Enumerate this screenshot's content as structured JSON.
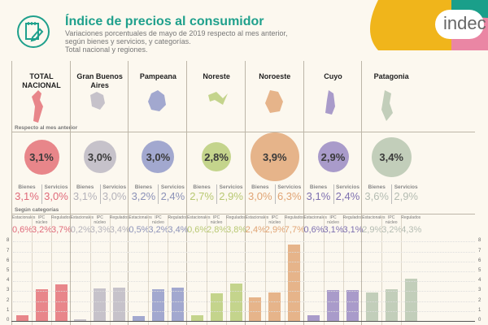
{
  "header": {
    "title": "Índice de precios al consumidor",
    "subtitle_lines": [
      "Variaciones porcentuales de mayo de 2019 respecto al mes anterior,",
      "según bienes y servicios, y categorías.",
      "Total nacional y regiones."
    ],
    "icon": "notepad-pencil-icon",
    "logo_text": "indec",
    "accent": "#1fa08c"
  },
  "sections": {
    "previous_month": "Respecto al mes anterior",
    "by_category": "Según categorías"
  },
  "labels": {
    "bienes": "Bienes",
    "servicios": "Servicios",
    "estacionales": "Estacionales",
    "nucleo": "IPC núcleo",
    "regulados": "Regulados"
  },
  "regions": [
    {
      "name": "TOTAL NACIONAL",
      "general": "3,1%",
      "bienes": "3,1%",
      "servicios": "3,0%",
      "estacionales": "0,6%",
      "nucleo": "3,2%",
      "regulados": "3,7%",
      "color": "#e8868a",
      "text_color": "#e06a7a"
    },
    {
      "name": "Gran Buenos Aires",
      "general": "3,0%",
      "bienes": "3,1%",
      "servicios": "3,0%",
      "estacionales": "0,2%",
      "nucleo": "3,3%",
      "regulados": "3,4%",
      "color": "#c6c2ca",
      "text_color": "#b4b2ba"
    },
    {
      "name": "Pampeana",
      "general": "3,0%",
      "bienes": "3,2%",
      "servicios": "2,4%",
      "estacionales": "0,5%",
      "nucleo": "3,2%",
      "regulados": "3,4%",
      "color": "#a2a8cf",
      "text_color": "#8c92b8"
    },
    {
      "name": "Noreste",
      "general": "2,8%",
      "bienes": "2,7%",
      "servicios": "2,9%",
      "estacionales": "0,6%",
      "nucleo": "2,8%",
      "regulados": "3,8%",
      "color": "#c4d48c",
      "text_color": "#b8c872"
    },
    {
      "name": "Noroeste",
      "general": "3,9%",
      "bienes": "3,0%",
      "servicios": "6,3%",
      "estacionales": "2,4%",
      "nucleo": "2,9%",
      "regulados": "7,7%",
      "color": "#e6b48a",
      "text_color": "#e0a474"
    },
    {
      "name": "Cuyo",
      "general": "2,9%",
      "bienes": "3,1%",
      "servicios": "2,4%",
      "estacionales": "0,6%",
      "nucleo": "3,1%",
      "regulados": "3,1%",
      "color": "#a99bca",
      "text_color": "#7e70b0"
    },
    {
      "name": "Patagonia",
      "general": "3,4%",
      "bienes": "3,6%",
      "servicios": "2,9%",
      "estacionales": "2,9%",
      "nucleo": "3,2%",
      "regulados": "4,3%",
      "color": "#c2ceba",
      "text_color": "#b4bcb2"
    }
  ],
  "chart_data": {
    "type": "bar",
    "categories": [
      "Estacionales",
      "IPC núcleo",
      "Regulados"
    ],
    "groups": [
      "TOTAL NACIONAL",
      "Gran Buenos Aires",
      "Pampeana",
      "Noreste",
      "Noroeste",
      "Cuyo",
      "Patagonia"
    ],
    "series": [
      {
        "name": "TOTAL NACIONAL",
        "values": [
          0.6,
          3.2,
          3.7
        ]
      },
      {
        "name": "Gran Buenos Aires",
        "values": [
          0.2,
          3.3,
          3.4
        ]
      },
      {
        "name": "Pampeana",
        "values": [
          0.5,
          3.2,
          3.4
        ]
      },
      {
        "name": "Noreste",
        "values": [
          0.6,
          2.8,
          3.8
        ]
      },
      {
        "name": "Noroeste",
        "values": [
          2.4,
          2.9,
          7.7
        ]
      },
      {
        "name": "Cuyo",
        "values": [
          0.6,
          3.1,
          3.1
        ]
      },
      {
        "name": "Patagonia",
        "values": [
          2.9,
          3.2,
          4.3
        ]
      }
    ],
    "general": [
      3.1,
      3.0,
      3.0,
      2.8,
      3.9,
      2.9,
      3.4
    ],
    "ylim": [
      0,
      8
    ],
    "yticks": [
      "0",
      "1",
      "2",
      "3",
      "4",
      "5",
      "6",
      "7",
      "8"
    ],
    "grid": true
  }
}
